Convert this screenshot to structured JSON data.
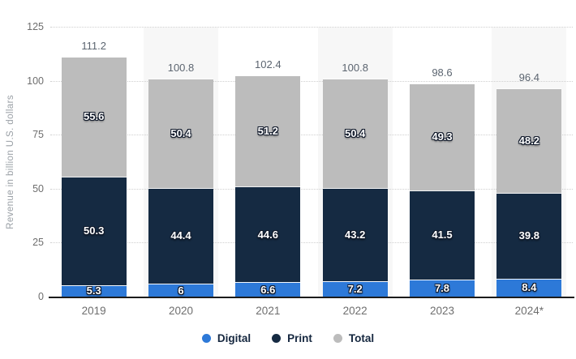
{
  "chart_data": {
    "type": "bar",
    "stacked": true,
    "title": "",
    "xlabel": "",
    "ylabel": "Revenue in billion U.S. dollars",
    "categories": [
      "2019",
      "2020",
      "2021",
      "2022",
      "2023",
      "2024*"
    ],
    "series": [
      {
        "name": "Digital",
        "color": "#2d79d8",
        "values": [
          5.3,
          6,
          6.6,
          7.2,
          7.8,
          8.4
        ]
      },
      {
        "name": "Print",
        "color": "#152a42",
        "values": [
          50.3,
          44.4,
          44.6,
          43.2,
          41.5,
          39.8
        ]
      },
      {
        "name": "Total",
        "color": "#bcbcbc",
        "values": [
          55.6,
          50.4,
          51.2,
          50.4,
          49.3,
          48.2
        ]
      }
    ],
    "stack_total_labels": [
      111.2,
      100.8,
      102.4,
      100.8,
      98.6,
      96.4
    ],
    "y_ticks": [
      0,
      25,
      50,
      75,
      100,
      125
    ],
    "ylim": [
      0,
      125
    ],
    "grid": "dotted-horizontal",
    "alternating_column_bands": "#f7f7f7",
    "legend_position": "bottom"
  }
}
